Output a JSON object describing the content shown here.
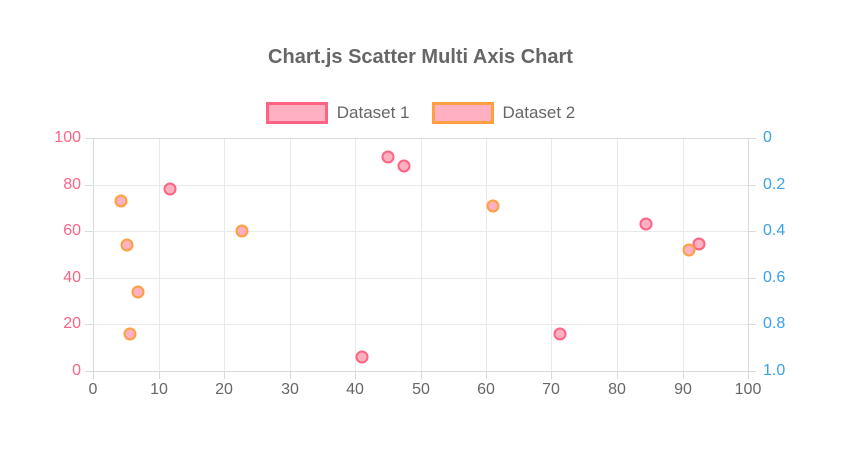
{
  "chart_data": {
    "type": "scatter",
    "title": "Chart.js Scatter Multi Axis Chart",
    "title_color": "#666666",
    "background_color": "#ffffff",
    "grid": true,
    "grid_color": "#e9e9e9",
    "legend_position": "top",
    "x_axis": {
      "min": 0,
      "max": 100,
      "ticks": [
        0,
        10,
        20,
        30,
        40,
        50,
        60,
        70,
        80,
        90,
        100
      ],
      "tick_color": "#666666",
      "position": "bottom"
    },
    "y_axis_left": {
      "min": 0,
      "max": 100,
      "ticks": [
        0,
        20,
        40,
        60,
        80,
        100
      ],
      "tick_color": "#ff6384",
      "position": "left",
      "reversed": false
    },
    "y_axis_right": {
      "min": 0,
      "max": 1,
      "ticks": [
        "0",
        "0.2",
        "0.4",
        "0.6",
        "0.8",
        "1.0"
      ],
      "tick_values": [
        0,
        0.2,
        0.4,
        0.6,
        0.8,
        1.0
      ],
      "tick_color": "#36a2eb",
      "position": "right",
      "reversed": true
    },
    "series": [
      {
        "name": "Dataset 1",
        "axis": "left",
        "border_color": "#ff6384",
        "fill_color": "#ffb1c1",
        "points": [
          {
            "x": 11.8,
            "y": 78
          },
          {
            "x": 41.0,
            "y": 6
          },
          {
            "x": 45.0,
            "y": 92
          },
          {
            "x": 47.5,
            "y": 88
          },
          {
            "x": 71.3,
            "y": 16
          },
          {
            "x": 84.4,
            "y": 63
          },
          {
            "x": 92.5,
            "y": 54.5
          }
        ]
      },
      {
        "name": "Dataset 2",
        "axis": "right",
        "border_color": "#ff9f40",
        "fill_color": "#ffb1c1",
        "points": [
          {
            "x": 4.3,
            "y": 0.27
          },
          {
            "x": 5.2,
            "y": 0.46
          },
          {
            "x": 5.7,
            "y": 0.84
          },
          {
            "x": 6.8,
            "y": 0.66
          },
          {
            "x": 22.7,
            "y": 0.4
          },
          {
            "x": 61.0,
            "y": 0.29
          },
          {
            "x": 91.0,
            "y": 0.48
          }
        ]
      }
    ]
  }
}
